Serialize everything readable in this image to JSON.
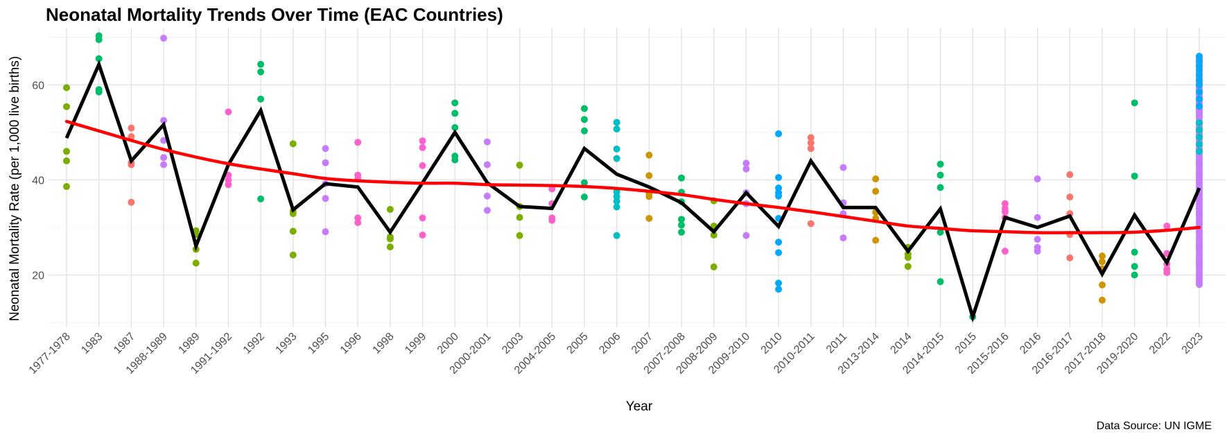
{
  "chart_data": {
    "type": "line",
    "title": "Neonatal Mortality Trends Over Time (EAC Countries)",
    "xlabel": "Year",
    "ylabel": "Neonatal Mortality Rate (per 1,000 live births)",
    "caption": "Data Source: UN IGME",
    "ylim": [
      9,
      72
    ],
    "yticks": [
      20,
      40,
      60
    ],
    "grid": true,
    "legend": "none",
    "categories": [
      "1977-1978",
      "1983",
      "1987",
      "1988-1989",
      "1989",
      "1991-1992",
      "1992",
      "1993",
      "1995",
      "1996",
      "1998",
      "1999",
      "2000",
      "2000-2001",
      "2003",
      "2004-2005",
      "2005",
      "2006",
      "2007",
      "2007-2008",
      "2008-2009",
      "2009-2010",
      "2010",
      "2010-2011",
      "2011",
      "2013-2014",
      "2014",
      "2014-2015",
      "2015",
      "2015-2016",
      "2016",
      "2016-2017",
      "2017-2018",
      "2019-2020",
      "2022",
      "2023"
    ],
    "series": [
      {
        "type": "line",
        "color": "#000000",
        "values": [
          48.8,
          64.3,
          44.0,
          51.6,
          26.1,
          43.2,
          54.6,
          33.7,
          39.2,
          38.5,
          29.0,
          39.4,
          50.0,
          39.4,
          34.4,
          34.0,
          46.6,
          41.2,
          38.5,
          35.2,
          29.1,
          37.3,
          30.2,
          44.0,
          34.2,
          34.2,
          25.0,
          33.9,
          11.2,
          32.1,
          30.0,
          32.4,
          20.2,
          32.6,
          22.6,
          38.3
        ]
      },
      {
        "type": "smooth",
        "color": "#ff0000",
        "values": [
          52.3,
          50.3,
          48.3,
          46.4,
          44.8,
          43.4,
          42.3,
          41.3,
          40.3,
          39.8,
          39.5,
          39.3,
          39.3,
          39.0,
          38.9,
          38.8,
          38.6,
          38.2,
          37.6,
          36.9,
          35.9,
          35.0,
          34.2,
          33.3,
          32.3,
          31.3,
          30.3,
          29.8,
          29.3,
          29.1,
          28.9,
          28.9,
          28.9,
          29.0,
          29.4,
          30.0
        ]
      }
    ],
    "points": [
      {
        "x": "1977-1978",
        "y": [
          59.4,
          55.4,
          46.0,
          44.0,
          38.6
        ],
        "color": "#7CAE00"
      },
      {
        "x": "1983",
        "y": [
          70.3,
          69.5,
          65.5,
          59.0,
          58.5
        ],
        "color": "#00BE67"
      },
      {
        "x": "1987",
        "y": [
          50.9,
          49.1,
          43.6,
          43.2,
          35.3
        ],
        "color": "#F8766D"
      },
      {
        "x": "1988-1989",
        "y": [
          69.8,
          52.5,
          48.3,
          44.7,
          43.2
        ],
        "color": "#C77CFF"
      },
      {
        "x": "1989",
        "y": [
          29.3,
          28.5,
          25.4,
          22.5
        ],
        "color": "#7CAE00"
      },
      {
        "x": "1991-1992",
        "y": [
          54.3,
          41.0,
          40.0,
          39.0
        ],
        "color": "#FF61CC"
      },
      {
        "x": "1992",
        "y": [
          64.3,
          62.7,
          57.0,
          36.0
        ],
        "color": "#00BE67"
      },
      {
        "x": "1993",
        "y": [
          47.6,
          33.4,
          32.9,
          29.2,
          24.2
        ],
        "color": "#7CAE00"
      },
      {
        "x": "1995",
        "y": [
          46.6,
          43.6,
          39.2,
          36.1,
          29.1
        ],
        "color": "#C77CFF"
      },
      {
        "x": "1996",
        "y": [
          47.9,
          41.0,
          40.2,
          32.0,
          31.0
        ],
        "color": "#FF61CC"
      },
      {
        "x": "1998",
        "y": [
          33.8,
          28.0,
          27.6,
          25.9
        ],
        "color": "#7CAE00"
      },
      {
        "x": "1999",
        "y": [
          48.2,
          46.8,
          43.0,
          32.0,
          28.4
        ],
        "color": "#FF61CC"
      },
      {
        "x": "2000",
        "y": [
          56.2,
          54.0,
          51.0,
          45.0,
          44.2
        ],
        "color": "#00BE67"
      },
      {
        "x": "2000-2001",
        "y": [
          48.0,
          43.2,
          36.6,
          33.6
        ],
        "color": "#C77CFF"
      },
      {
        "x": "2003",
        "y": [
          43.1,
          34.4,
          32.1,
          28.3
        ],
        "color": "#7CAE00"
      },
      {
        "x": "2004-2005",
        "y": [
          38.1,
          32.0,
          31.5,
          35.0
        ],
        "color": "#FF61CC"
      },
      {
        "x": "2005",
        "y": [
          55.0,
          52.7,
          50.3,
          39.4,
          36.4
        ],
        "color": "#00BE67"
      },
      {
        "x": "2006",
        "y": [
          52.1,
          50.7,
          46.5,
          44.5,
          37.5,
          36.5,
          35.5,
          34.3,
          28.3
        ],
        "color": "#00BFC4"
      },
      {
        "x": "2007",
        "y": [
          45.2,
          40.9,
          37.2,
          36.5,
          31.9
        ],
        "color": "#CD9600"
      },
      {
        "x": "2007-2008",
        "y": [
          40.4,
          37.4,
          35.4,
          31.7,
          30.5,
          29.0
        ],
        "color": "#00BE67"
      },
      {
        "x": "2008-2009",
        "y": [
          35.6,
          30.3,
          28.4,
          21.7
        ],
        "color": "#7CAE00"
      },
      {
        "x": "2009-2010",
        "y": [
          43.5,
          42.3,
          37.3,
          35.0,
          28.3
        ],
        "color": "#C77CFF"
      },
      {
        "x": "2010",
        "y": [
          49.7,
          40.5,
          38.3,
          37.3,
          36.6,
          31.9,
          26.9,
          24.7,
          18.3,
          17.0
        ],
        "color": "#00A9FF"
      },
      {
        "x": "2010-2011",
        "y": [
          48.9,
          47.8,
          46.6,
          30.8
        ],
        "color": "#F8766D"
      },
      {
        "x": "2011",
        "y": [
          42.6,
          35.2,
          32.9,
          27.8
        ],
        "color": "#C77CFF"
      },
      {
        "x": "2013-2014",
        "y": [
          40.2,
          37.6,
          33.2,
          31.9,
          27.3
        ],
        "color": "#CD9600"
      },
      {
        "x": "2014",
        "y": [
          25.8,
          24.4,
          23.7,
          21.8
        ],
        "color": "#7CAE00"
      },
      {
        "x": "2014-2015",
        "y": [
          43.3,
          41.0,
          38.4,
          29.0,
          18.6
        ],
        "color": "#00BE67"
      },
      {
        "x": "2015",
        "y": [
          11.2
        ],
        "color": "#00BE67"
      },
      {
        "x": "2015-2016",
        "y": [
          35.0,
          34.0,
          33.3,
          32.1,
          25.0
        ],
        "color": "#FF61CC"
      },
      {
        "x": "2016",
        "y": [
          40.2,
          32.1,
          27.5,
          25.8,
          25.0
        ],
        "color": "#C77CFF"
      },
      {
        "x": "2016-2017",
        "y": [
          41.1,
          36.4,
          32.9,
          28.5,
          23.6
        ],
        "color": "#F8766D"
      },
      {
        "x": "2017-2018",
        "y": [
          24.0,
          22.8,
          21.3,
          17.9,
          14.7
        ],
        "color": "#CD9600"
      },
      {
        "x": "2019-2020",
        "y": [
          56.2,
          40.8,
          24.8,
          21.8,
          20.0
        ],
        "color": "#00BE67"
      },
      {
        "x": "2022",
        "y": [
          30.3,
          24.5,
          22.3,
          21.2,
          20.5
        ],
        "color": "#FF61CC"
      },
      {
        "x": "2023",
        "range": [
          18.0,
          66.0
        ],
        "color": "#C77CFF",
        "extra": [
          {
            "y": [
              66.0,
              65.0,
              64.0,
              63.0,
              62.0,
              61.0,
              60.0,
              58.5,
              57.0,
              55.5
            ],
            "color": "#00A9FF"
          },
          {
            "y": [
              52.0,
              50.5,
              49.0,
              47.5,
              46.0
            ],
            "color": "#00BFC4"
          }
        ]
      }
    ]
  }
}
